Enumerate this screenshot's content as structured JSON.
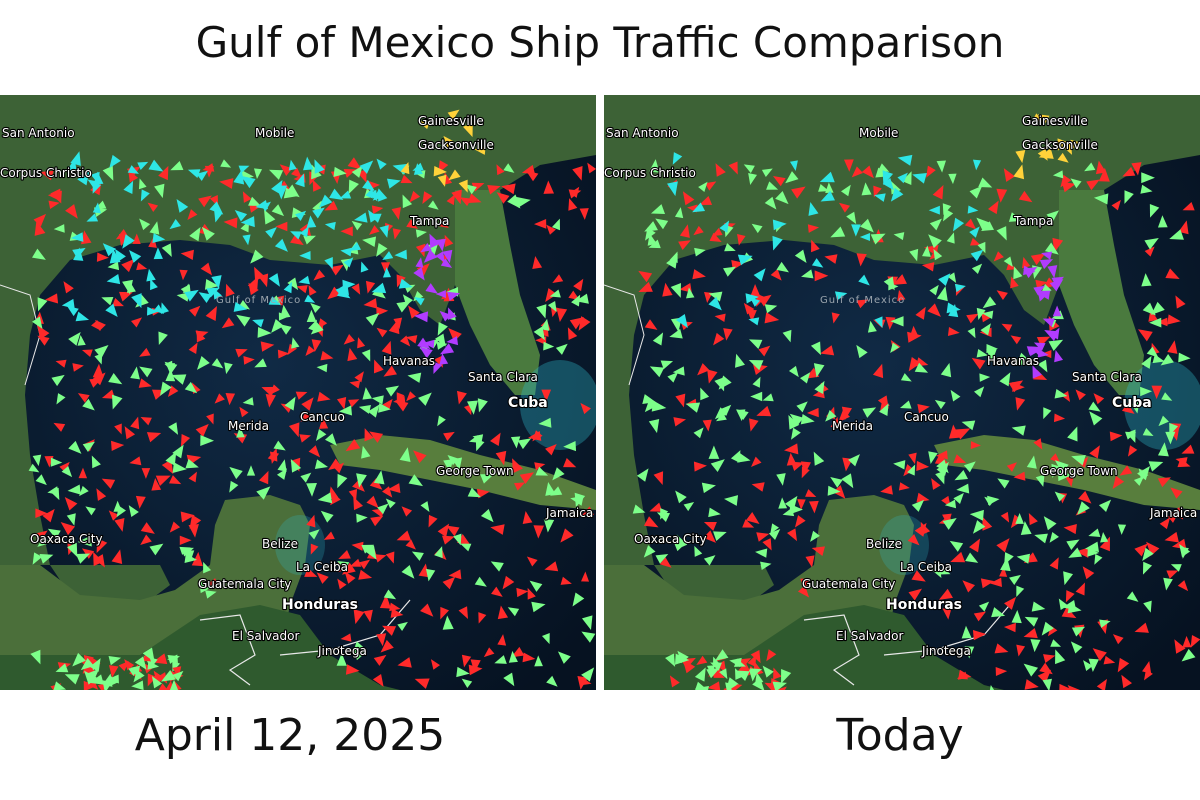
{
  "title": "Gulf of Mexico Ship Traffic Comparison",
  "panels": [
    {
      "caption": "April 12, 2025",
      "labels": [
        "San Antonio",
        "Corpus Christio",
        "Mobile",
        "Tampa",
        "Havanas",
        "Santa Clara",
        "Cuba",
        "Cancuo",
        "Merida",
        "George Town",
        "Belize",
        "La Ceiba",
        "Guatemala City",
        "Honduras",
        "El Salvador",
        "Oaxaca City",
        "Jamaica",
        "Gulf of Mexico",
        "Jinotega",
        "Gainesville",
        "Gacksonville"
      ]
    },
    {
      "caption": "Today",
      "labels": [
        "San Antonio",
        "Corpus Christio",
        "Mobile",
        "Tampa",
        "Havanas",
        "Santa Clara",
        "Cuba",
        "Cancuo",
        "Merida",
        "George Town",
        "Belize",
        "La Ceiba",
        "Guatemala City",
        "Honduras",
        "El Salvador",
        "Oaxaca City",
        "Jamaica",
        "Gulf of Mexico",
        "Jinotega",
        "Gainesville",
        "Gacksonville"
      ]
    }
  ],
  "legend_colors": {
    "tanker": "#ff2a2a",
    "cargo": "#7dff8a",
    "passenger": "#2ee6e6",
    "fishing": "#b13cff",
    "other": "#ffd23a"
  }
}
